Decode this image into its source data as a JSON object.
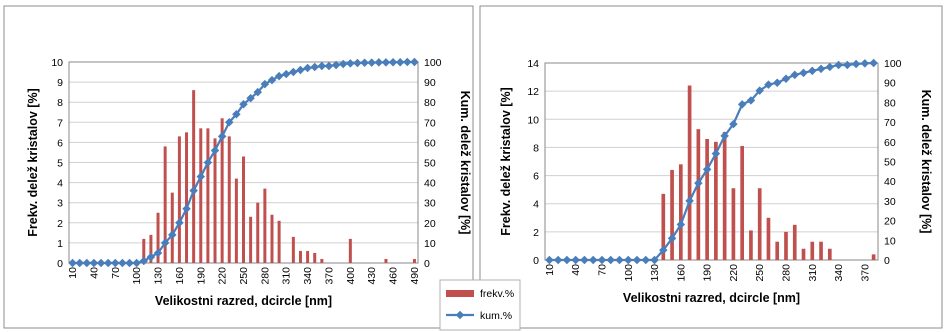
{
  "legend": {
    "freq_label": "frekv.%",
    "cum_label": "kum.%",
    "freq_color": "#c0504d",
    "cum_color": "#4a7ebb"
  },
  "chart_data": [
    {
      "type": "bar",
      "xlabel": "Velikostni razred, dcircle [nm]",
      "ylabel": "Frekv. delež kristalov [%]",
      "y2label": "Kum. delež kristalov [%]",
      "ylim": [
        0,
        10
      ],
      "y2lim": [
        0,
        100
      ],
      "yticks": [
        0,
        1,
        2,
        3,
        4,
        5,
        6,
        7,
        8,
        9,
        10
      ],
      "y2ticks": [
        0,
        10,
        20,
        30,
        40,
        50,
        60,
        70,
        80,
        90,
        100
      ],
      "x": [
        10,
        20,
        30,
        40,
        50,
        60,
        70,
        80,
        90,
        100,
        110,
        120,
        130,
        140,
        150,
        160,
        170,
        180,
        190,
        200,
        210,
        220,
        230,
        240,
        250,
        260,
        270,
        280,
        290,
        300,
        310,
        320,
        330,
        340,
        350,
        360,
        370,
        380,
        390,
        400,
        410,
        420,
        430,
        440,
        450,
        460,
        470,
        480,
        490
      ],
      "xtick_labels": [
        "10",
        "40",
        "70",
        "100",
        "130",
        "160",
        "190",
        "220",
        "250",
        "280",
        "310",
        "340",
        "370",
        "400",
        "430",
        "460",
        "490"
      ],
      "series": [
        {
          "name": "frekv.%",
          "kind": "bar",
          "axis": "left",
          "values": [
            0,
            0,
            0,
            0,
            0,
            0,
            0,
            0,
            0,
            0,
            1.2,
            1.4,
            2.5,
            5.8,
            3.5,
            6.3,
            6.5,
            8.6,
            6.7,
            6.7,
            6.2,
            7.2,
            6.3,
            4.2,
            5.3,
            2.3,
            3.0,
            3.7,
            2.4,
            2.1,
            0,
            1.3,
            0.6,
            0.6,
            0.5,
            0.2,
            0,
            0,
            0,
            1.2,
            0,
            0,
            0,
            0,
            0.2,
            0,
            0,
            0,
            0.2
          ]
        },
        {
          "name": "kum.%",
          "kind": "line",
          "axis": "right",
          "values": [
            0,
            0,
            0,
            0,
            0,
            0,
            0,
            0,
            0,
            0,
            1,
            3,
            5,
            10,
            14,
            20,
            27,
            36,
            43,
            50,
            56,
            63,
            70,
            74,
            79,
            82,
            85,
            89,
            91,
            93,
            94,
            95,
            96,
            97,
            97.5,
            98,
            98,
            98.5,
            99,
            99.3,
            99.5,
            99.6,
            99.7,
            99.8,
            99.8,
            99.9,
            99.9,
            100,
            100
          ]
        }
      ]
    },
    {
      "type": "bar",
      "xlabel": "Velikostni razred, dcircle [nm]",
      "ylabel": "Frekv. delež kristalov [%]",
      "y2label": "Kum. delež kristalov [%]",
      "ylim": [
        0,
        14
      ],
      "y2lim": [
        0,
        100
      ],
      "yticks": [
        0,
        2,
        4,
        6,
        8,
        10,
        12,
        14
      ],
      "y2ticks": [
        0,
        10,
        20,
        30,
        40,
        50,
        60,
        70,
        80,
        90,
        100
      ],
      "x": [
        10,
        20,
        30,
        40,
        50,
        60,
        70,
        80,
        90,
        100,
        110,
        120,
        130,
        140,
        150,
        160,
        170,
        180,
        190,
        200,
        210,
        220,
        230,
        240,
        250,
        260,
        270,
        280,
        290,
        300,
        310,
        320,
        330,
        340,
        350,
        360,
        370,
        380
      ],
      "xtick_labels": [
        "10",
        "40",
        "70",
        "100",
        "130",
        "160",
        "190",
        "220",
        "250",
        "280",
        "310",
        "340",
        "370"
      ],
      "series": [
        {
          "name": "frekv.%",
          "kind": "bar",
          "axis": "left",
          "values": [
            0,
            0,
            0,
            0,
            0,
            0,
            0,
            0,
            0,
            0,
            0,
            0,
            0,
            4.7,
            6.4,
            6.8,
            12.4,
            9.3,
            8.6,
            8.4,
            9.1,
            5.1,
            8.1,
            2.1,
            5.1,
            3.0,
            1.3,
            2.0,
            2.5,
            0.8,
            1.3,
            1.3,
            0.8,
            0,
            0,
            0,
            0,
            0.4
          ]
        },
        {
          "name": "kum.%",
          "kind": "line",
          "axis": "right",
          "values": [
            0,
            0,
            0,
            0,
            0,
            0,
            0,
            0,
            0,
            0,
            0,
            0,
            0,
            5,
            11,
            18,
            30,
            39,
            46,
            54,
            63,
            69,
            79,
            81,
            86,
            89,
            90,
            92,
            94,
            95,
            96,
            97,
            98,
            99,
            99,
            99.5,
            99.8,
            100
          ]
        }
      ]
    }
  ]
}
